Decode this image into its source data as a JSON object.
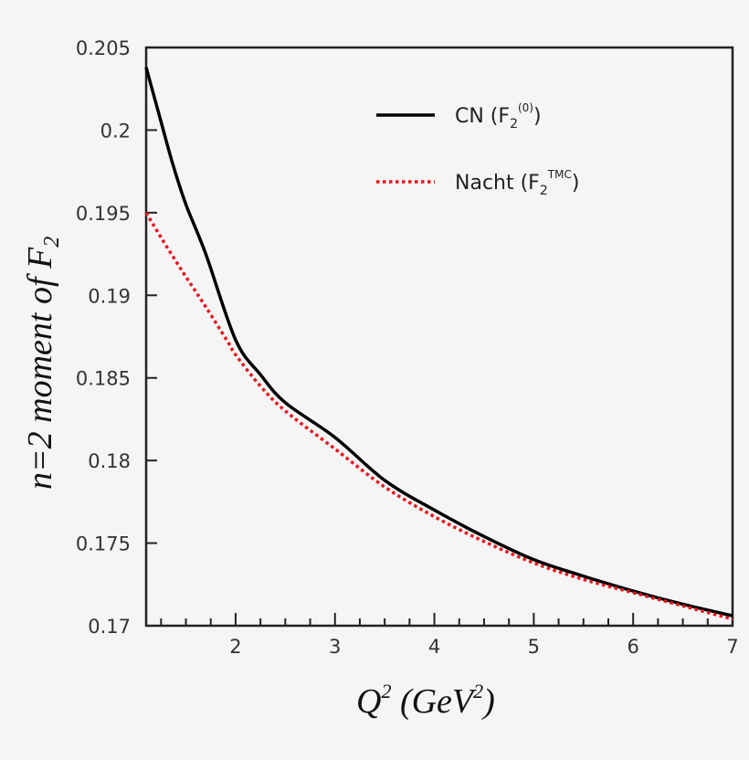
{
  "chart_data": {
    "type": "line",
    "title": "",
    "xlabel": "Q^2 (GeV^2)",
    "ylabel": "n=2 moment of F_2",
    "xlim": [
      1.1,
      7
    ],
    "ylim": [
      0.17,
      0.205
    ],
    "x_ticks": [
      2,
      3,
      4,
      5,
      6,
      7
    ],
    "x_minor_step": 0.25,
    "y_ticks": [
      0.17,
      0.175,
      0.18,
      0.185,
      0.19,
      0.195,
      0.2,
      0.205
    ],
    "y_tick_labels": [
      "0.17",
      "0.175",
      "0.18",
      "0.185",
      "0.19",
      "0.195",
      "0.2",
      "0.205"
    ],
    "grid": false,
    "legend_position": "upper right",
    "series": [
      {
        "name": "CN (F2^(0))",
        "label_main": "CN (F",
        "label_sub": "2",
        "label_sup": "(0)",
        "label_end": ")",
        "color": "#000000",
        "style": "solid",
        "x": [
          1.1,
          1.25,
          1.37,
          1.5,
          1.7,
          2.0,
          2.25,
          2.5,
          3.0,
          3.5,
          4.0,
          4.5,
          5.0,
          5.5,
          6.0,
          6.5,
          7.0
        ],
        "values": [
          0.2038,
          0.2005,
          0.1979,
          0.1955,
          0.1925,
          0.1873,
          0.1852,
          0.1835,
          0.1814,
          0.1788,
          0.177,
          0.1754,
          0.174,
          0.173,
          0.1721,
          0.1713,
          0.1706
        ]
      },
      {
        "name": "Nacht (F2^TMC)",
        "label_main": "Nacht (F",
        "label_sub": "2",
        "label_sup": "TMC",
        "label_end": ")",
        "color": "#e8141c",
        "style": "dotted",
        "x": [
          1.1,
          1.25,
          1.47,
          1.7,
          1.93,
          2.0,
          2.25,
          2.5,
          3.0,
          3.5,
          4.0,
          4.5,
          5.0,
          5.5,
          6.0,
          6.5,
          7.0
        ],
        "values": [
          0.195,
          0.1935,
          0.1914,
          0.1893,
          0.1871,
          0.1864,
          0.1845,
          0.183,
          0.1807,
          0.1784,
          0.1766,
          0.1751,
          0.1738,
          0.1728,
          0.172,
          0.1712,
          0.1704
        ]
      }
    ]
  },
  "axes": {
    "x_title_main": "Q",
    "x_title_sup": "2",
    "x_title_paren_open": " (GeV",
    "x_title_sup2": "2",
    "x_title_paren_close": ")",
    "y_title_main": "n=2 moment of F",
    "y_title_sub": "2"
  },
  "colors": {
    "background": "#f5f5f5",
    "axis": "#222222"
  }
}
